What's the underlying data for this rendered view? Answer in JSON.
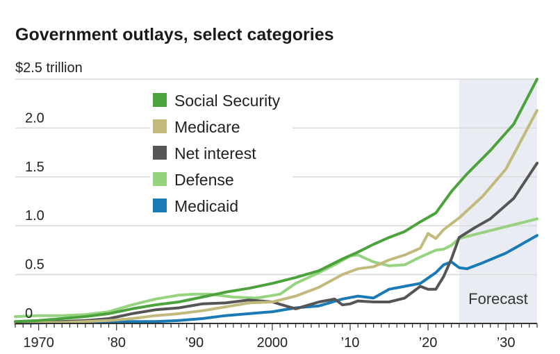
{
  "chart_data": {
    "type": "line",
    "title": "Government outlays, select categories",
    "y_unit_label": "$2.5 trillion",
    "ylim": [
      0,
      2.5
    ],
    "y_ticks": [
      {
        "value": 0,
        "label": "0"
      },
      {
        "value": 0.5,
        "label": "0.5"
      },
      {
        "value": 1.0,
        "label": "1.0"
      },
      {
        "value": 1.5,
        "label": "1.5"
      },
      {
        "value": 2.0,
        "label": "2.0"
      }
    ],
    "xlim": [
      1967,
      2034
    ],
    "x_ticks": [
      {
        "value": 1970,
        "label": "1970"
      },
      {
        "value": 1980,
        "label": "’80"
      },
      {
        "value": 1990,
        "label": "’90"
      },
      {
        "value": 2000,
        "label": "2000"
      },
      {
        "value": 2010,
        "label": "’10"
      },
      {
        "value": 2020,
        "label": "’20"
      },
      {
        "value": 2030,
        "label": "’30"
      }
    ],
    "grid": true,
    "legend_position": "top-left",
    "forecast": {
      "start": 2024,
      "end": 2034,
      "label": "Forecast"
    },
    "series": [
      {
        "name": "Social Security",
        "color": "#4ca23d",
        "points": [
          [
            1967,
            0.02
          ],
          [
            1970,
            0.03
          ],
          [
            1973,
            0.05
          ],
          [
            1976,
            0.07
          ],
          [
            1979,
            0.1
          ],
          [
            1982,
            0.15
          ],
          [
            1985,
            0.19
          ],
          [
            1988,
            0.22
          ],
          [
            1991,
            0.27
          ],
          [
            1994,
            0.32
          ],
          [
            1997,
            0.36
          ],
          [
            2000,
            0.41
          ],
          [
            2003,
            0.47
          ],
          [
            2006,
            0.54
          ],
          [
            2009,
            0.66
          ],
          [
            2011,
            0.73
          ],
          [
            2013,
            0.81
          ],
          [
            2015,
            0.88
          ],
          [
            2017,
            0.94
          ],
          [
            2019,
            1.04
          ],
          [
            2021,
            1.13
          ],
          [
            2023,
            1.35
          ],
          [
            2025,
            1.53
          ],
          [
            2028,
            1.77
          ],
          [
            2031,
            2.04
          ],
          [
            2034,
            2.5
          ]
        ]
      },
      {
        "name": "Medicare",
        "color": "#c2b97c",
        "points": [
          [
            1967,
            0.0
          ],
          [
            1970,
            0.01
          ],
          [
            1973,
            0.01
          ],
          [
            1976,
            0.02
          ],
          [
            1979,
            0.03
          ],
          [
            1982,
            0.05
          ],
          [
            1985,
            0.08
          ],
          [
            1988,
            0.1
          ],
          [
            1991,
            0.13
          ],
          [
            1994,
            0.17
          ],
          [
            1997,
            0.21
          ],
          [
            2000,
            0.22
          ],
          [
            2003,
            0.28
          ],
          [
            2006,
            0.37
          ],
          [
            2009,
            0.5
          ],
          [
            2011,
            0.56
          ],
          [
            2013,
            0.58
          ],
          [
            2015,
            0.65
          ],
          [
            2017,
            0.7
          ],
          [
            2019,
            0.77
          ],
          [
            2020,
            0.92
          ],
          [
            2021,
            0.87
          ],
          [
            2022,
            0.96
          ],
          [
            2024,
            1.08
          ],
          [
            2027,
            1.3
          ],
          [
            2030,
            1.58
          ],
          [
            2034,
            2.18
          ]
        ]
      },
      {
        "name": "Net interest",
        "color": "#555555",
        "points": [
          [
            1967,
            0.0
          ],
          [
            1970,
            0.01
          ],
          [
            1973,
            0.02
          ],
          [
            1976,
            0.03
          ],
          [
            1979,
            0.05
          ],
          [
            1982,
            0.1
          ],
          [
            1985,
            0.14
          ],
          [
            1988,
            0.16
          ],
          [
            1991,
            0.2
          ],
          [
            1994,
            0.21
          ],
          [
            1997,
            0.24
          ],
          [
            2000,
            0.22
          ],
          [
            2003,
            0.15
          ],
          [
            2006,
            0.22
          ],
          [
            2008,
            0.25
          ],
          [
            2009,
            0.19
          ],
          [
            2010,
            0.2
          ],
          [
            2011,
            0.23
          ],
          [
            2013,
            0.22
          ],
          [
            2015,
            0.22
          ],
          [
            2017,
            0.26
          ],
          [
            2019,
            0.38
          ],
          [
            2020,
            0.35
          ],
          [
            2021,
            0.35
          ],
          [
            2022,
            0.48
          ],
          [
            2023,
            0.66
          ],
          [
            2024,
            0.88
          ],
          [
            2026,
            0.98
          ],
          [
            2028,
            1.07
          ],
          [
            2031,
            1.28
          ],
          [
            2034,
            1.64
          ]
        ]
      },
      {
        "name": "Defense",
        "color": "#95d37e",
        "points": [
          [
            1967,
            0.07
          ],
          [
            1970,
            0.08
          ],
          [
            1973,
            0.08
          ],
          [
            1976,
            0.09
          ],
          [
            1979,
            0.12
          ],
          [
            1982,
            0.19
          ],
          [
            1985,
            0.25
          ],
          [
            1988,
            0.29
          ],
          [
            1990,
            0.3
          ],
          [
            1992,
            0.3
          ],
          [
            1995,
            0.27
          ],
          [
            1998,
            0.26
          ],
          [
            2001,
            0.3
          ],
          [
            2003,
            0.41
          ],
          [
            2006,
            0.52
          ],
          [
            2008,
            0.6
          ],
          [
            2010,
            0.69
          ],
          [
            2011,
            0.7
          ],
          [
            2013,
            0.63
          ],
          [
            2015,
            0.59
          ],
          [
            2017,
            0.6
          ],
          [
            2019,
            0.68
          ],
          [
            2021,
            0.75
          ],
          [
            2022,
            0.76
          ],
          [
            2023,
            0.8
          ],
          [
            2024,
            0.87
          ],
          [
            2027,
            0.93
          ],
          [
            2030,
            0.99
          ],
          [
            2034,
            1.07
          ]
        ]
      },
      {
        "name": "Medicaid",
        "color": "#1a7ab5",
        "points": [
          [
            1967,
            0.0
          ],
          [
            1970,
            0.005
          ],
          [
            1973,
            0.01
          ],
          [
            1976,
            0.01
          ],
          [
            1979,
            0.01
          ],
          [
            1982,
            0.02
          ],
          [
            1985,
            0.02
          ],
          [
            1988,
            0.03
          ],
          [
            1991,
            0.05
          ],
          [
            1994,
            0.08
          ],
          [
            1997,
            0.1
          ],
          [
            2000,
            0.12
          ],
          [
            2003,
            0.16
          ],
          [
            2006,
            0.18
          ],
          [
            2009,
            0.25
          ],
          [
            2011,
            0.28
          ],
          [
            2013,
            0.26
          ],
          [
            2015,
            0.35
          ],
          [
            2017,
            0.38
          ],
          [
            2019,
            0.41
          ],
          [
            2021,
            0.52
          ],
          [
            2022,
            0.6
          ],
          [
            2023,
            0.63
          ],
          [
            2024,
            0.57
          ],
          [
            2025,
            0.56
          ],
          [
            2027,
            0.62
          ],
          [
            2030,
            0.72
          ],
          [
            2034,
            0.9
          ]
        ]
      }
    ]
  }
}
